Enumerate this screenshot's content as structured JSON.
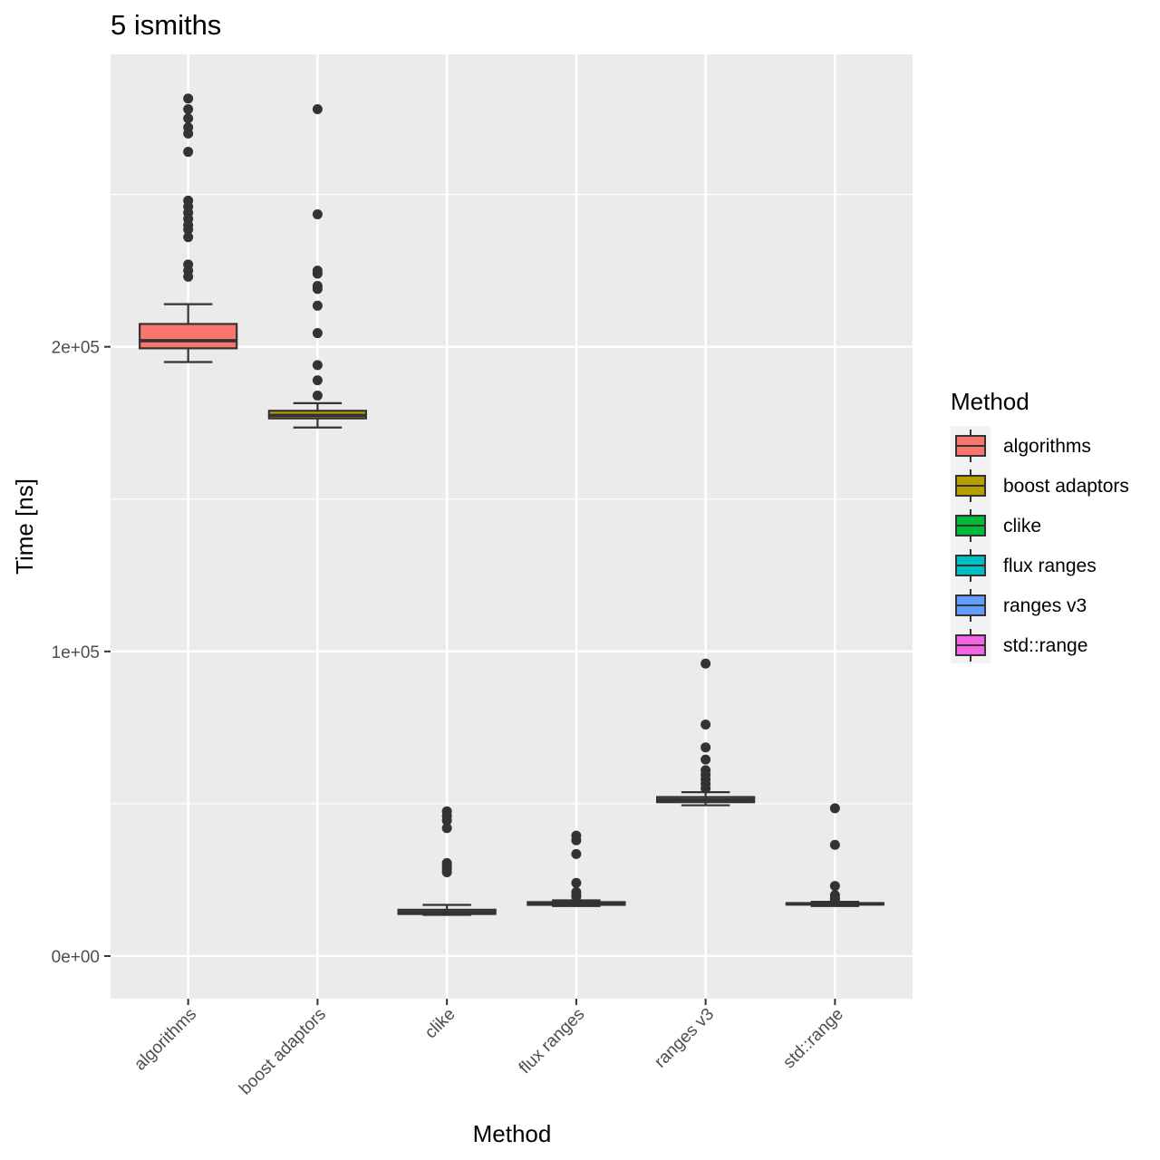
{
  "chart_data": {
    "type": "boxplot",
    "title": "5 ismiths",
    "xlabel": "Method",
    "ylabel": "Time [ns]",
    "ylim": [
      -14000,
      296000
    ],
    "y_ticks": [
      {
        "value": 0,
        "label": "0e+00"
      },
      {
        "value": 100000,
        "label": "1e+05"
      },
      {
        "value": 200000,
        "label": "2e+05"
      }
    ],
    "y_minor_ticks": [
      50000,
      150000,
      250000
    ],
    "grid": true,
    "legend_title": "Method",
    "legend_position": "right",
    "categories": [
      "algorithms",
      "boost adaptors",
      "clike",
      "flux ranges",
      "ranges v3",
      "std::range"
    ],
    "boxes": [
      {
        "name": "algorithms",
        "color": "#f8766d",
        "lower_whisker": 195000,
        "q1": 199500,
        "median": 202000,
        "q3": 207500,
        "upper_whisker": 214000,
        "outliers": [
          281500,
          278000,
          275000,
          272000,
          270000,
          264000,
          248000,
          246000,
          244000,
          242000,
          240000,
          238500,
          236000,
          227000,
          225000,
          223000
        ]
      },
      {
        "name": "boost adaptors",
        "color": "#b79f00",
        "lower_whisker": 173500,
        "q1": 176500,
        "median": 177500,
        "q3": 179000,
        "upper_whisker": 181500,
        "outliers": [
          278000,
          243500,
          225000,
          224000,
          220000,
          219000,
          213500,
          204500,
          194000,
          189000,
          184000
        ]
      },
      {
        "name": "clike",
        "color": "#00ba38",
        "lower_whisker": 13500,
        "q1": 13800,
        "median": 14300,
        "q3": 15200,
        "upper_whisker": 16800,
        "outliers": [
          47500,
          46000,
          44500,
          42000,
          30500,
          29500,
          28500,
          27500
        ]
      },
      {
        "name": "flux ranges",
        "color": "#00bfc4",
        "lower_whisker": 16400,
        "q1": 16800,
        "median": 17200,
        "q3": 17700,
        "upper_whisker": 18300,
        "outliers": [
          39500,
          38000,
          33500,
          24000,
          21000,
          20000,
          19500
        ]
      },
      {
        "name": "ranges v3",
        "color": "#619cff",
        "lower_whisker": 49500,
        "q1": 50500,
        "median": 51300,
        "q3": 52200,
        "upper_whisker": 53800,
        "outliers": [
          96000,
          76000,
          68500,
          64500,
          61000,
          59500,
          58000,
          56500,
          55000
        ]
      },
      {
        "name": "std::range",
        "color": "#f564e3",
        "lower_whisker": 16400,
        "q1": 16900,
        "median": 17100,
        "q3": 17400,
        "upper_whisker": 17800,
        "outliers": [
          48500,
          36500,
          23000,
          20000,
          19000,
          18500
        ]
      }
    ]
  }
}
